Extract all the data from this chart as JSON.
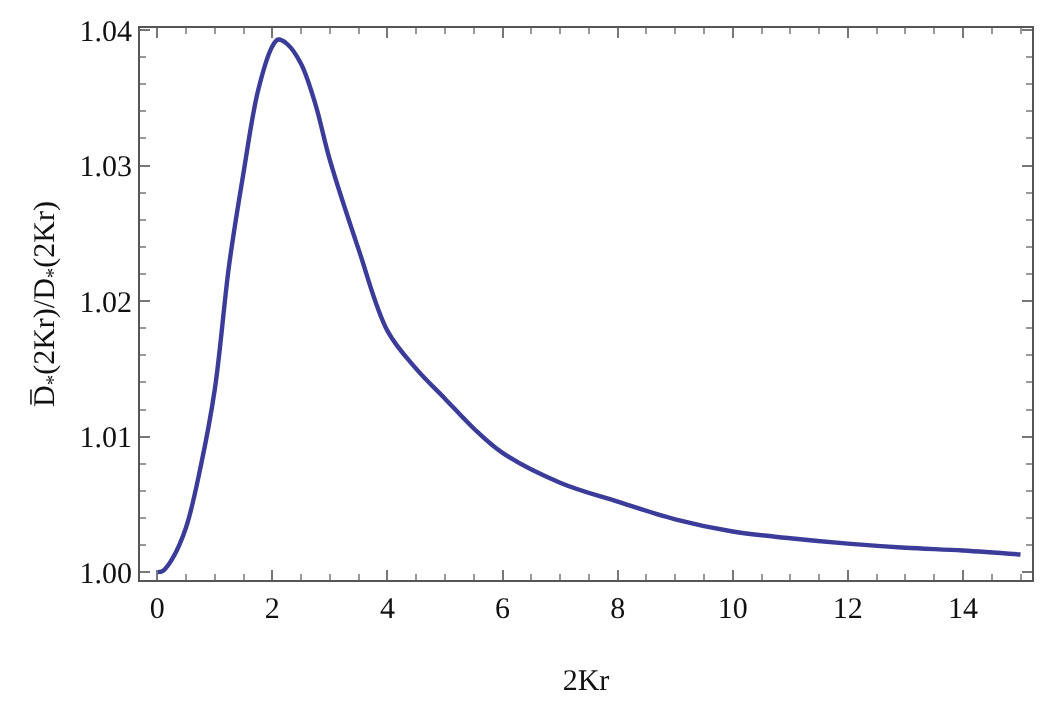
{
  "chart_data": {
    "type": "line",
    "xlabel": "2Kr",
    "ylabel": "D̅$_{*}$(2Kr)/D$_{*}$(2Kr)",
    "series": [
      {
        "color": "#3b3b9a",
        "x": [
          0,
          0.1,
          0.25,
          0.5,
          0.75,
          1,
          1.25,
          1.5,
          1.75,
          2,
          2.1,
          2.25,
          2.5,
          2.75,
          3,
          3.5,
          4,
          4.5,
          5,
          5.5,
          6,
          7,
          8,
          9,
          10,
          11,
          12,
          13,
          14,
          15
        ],
        "values": [
          1.0,
          1.0001,
          1.0009,
          1.0033,
          1.0077,
          1.0135,
          1.0227,
          1.0295,
          1.0355,
          1.0388,
          1.0393,
          1.039,
          1.0375,
          1.0345,
          1.0304,
          1.0238,
          1.0178,
          1.015,
          1.0128,
          1.0106,
          1.0088,
          1.0066,
          1.0052,
          1.0039,
          1.003,
          1.0025,
          1.0021,
          1.0018,
          1.0016,
          1.0013
        ]
      }
    ],
    "xlim": [
      -0.3,
      15.2
    ],
    "ylim": [
      0.99942,
      1.04015
    ],
    "xticks": [
      0,
      2,
      4,
      6,
      8,
      10,
      12,
      14
    ],
    "yticks": [
      {
        "value": 1.0,
        "label": "1.00"
      },
      {
        "value": 1.01,
        "label": "1.01"
      },
      {
        "value": 1.02,
        "label": "1.02"
      },
      {
        "value": 1.03,
        "label": "1.03"
      },
      {
        "value": 1.04,
        "label": "1.04"
      }
    ],
    "marker": "none",
    "line_style": "solid"
  }
}
